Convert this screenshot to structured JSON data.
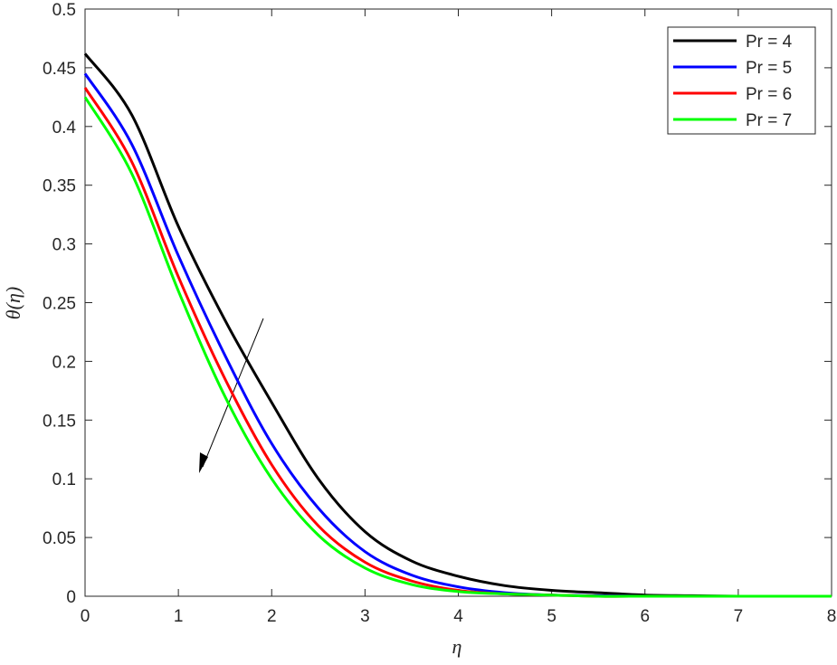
{
  "chart_data": {
    "type": "line",
    "x_label": "η",
    "y_label": "θ(η)",
    "x": [
      0,
      0.5,
      1,
      1.5,
      2,
      2.5,
      3,
      3.5,
      4,
      4.5,
      5,
      5.5,
      6,
      6.5,
      7,
      7.5,
      8
    ],
    "series": [
      {
        "name": "Pr = 4",
        "color": "#000000",
        "values": [
          0.462,
          0.41,
          0.315,
          0.235,
          0.165,
          0.1,
          0.055,
          0.03,
          0.017,
          0.009,
          0.005,
          0.003,
          0.001,
          0.0005,
          0,
          0,
          0
        ]
      },
      {
        "name": "Pr = 5",
        "color": "#0000ff",
        "values": [
          0.445,
          0.385,
          0.29,
          0.205,
          0.13,
          0.075,
          0.038,
          0.018,
          0.008,
          0.003,
          0.001,
          0.0005,
          0,
          0,
          0,
          0,
          0
        ]
      },
      {
        "name": "Pr = 6",
        "color": "#ff0000",
        "values": [
          0.433,
          0.37,
          0.272,
          0.185,
          0.112,
          0.06,
          0.029,
          0.013,
          0.005,
          0.002,
          0.001,
          0,
          0,
          0,
          0,
          0,
          0
        ]
      },
      {
        "name": "Pr = 7",
        "color": "#00ff00",
        "values": [
          0.425,
          0.36,
          0.26,
          0.17,
          0.1,
          0.052,
          0.024,
          0.01,
          0.004,
          0.002,
          0.001,
          0,
          0,
          0,
          0,
          0,
          0
        ]
      }
    ],
    "xlim": [
      0,
      8
    ],
    "xticks": [
      0,
      1,
      2,
      3,
      4,
      5,
      6,
      7,
      8
    ],
    "ylim": [
      0,
      0.5
    ],
    "yticks": [
      0,
      0.05,
      0.1,
      0.15,
      0.2,
      0.25,
      0.3,
      0.35,
      0.4,
      0.45,
      0.5
    ],
    "legend": "northeast",
    "grid": false
  }
}
